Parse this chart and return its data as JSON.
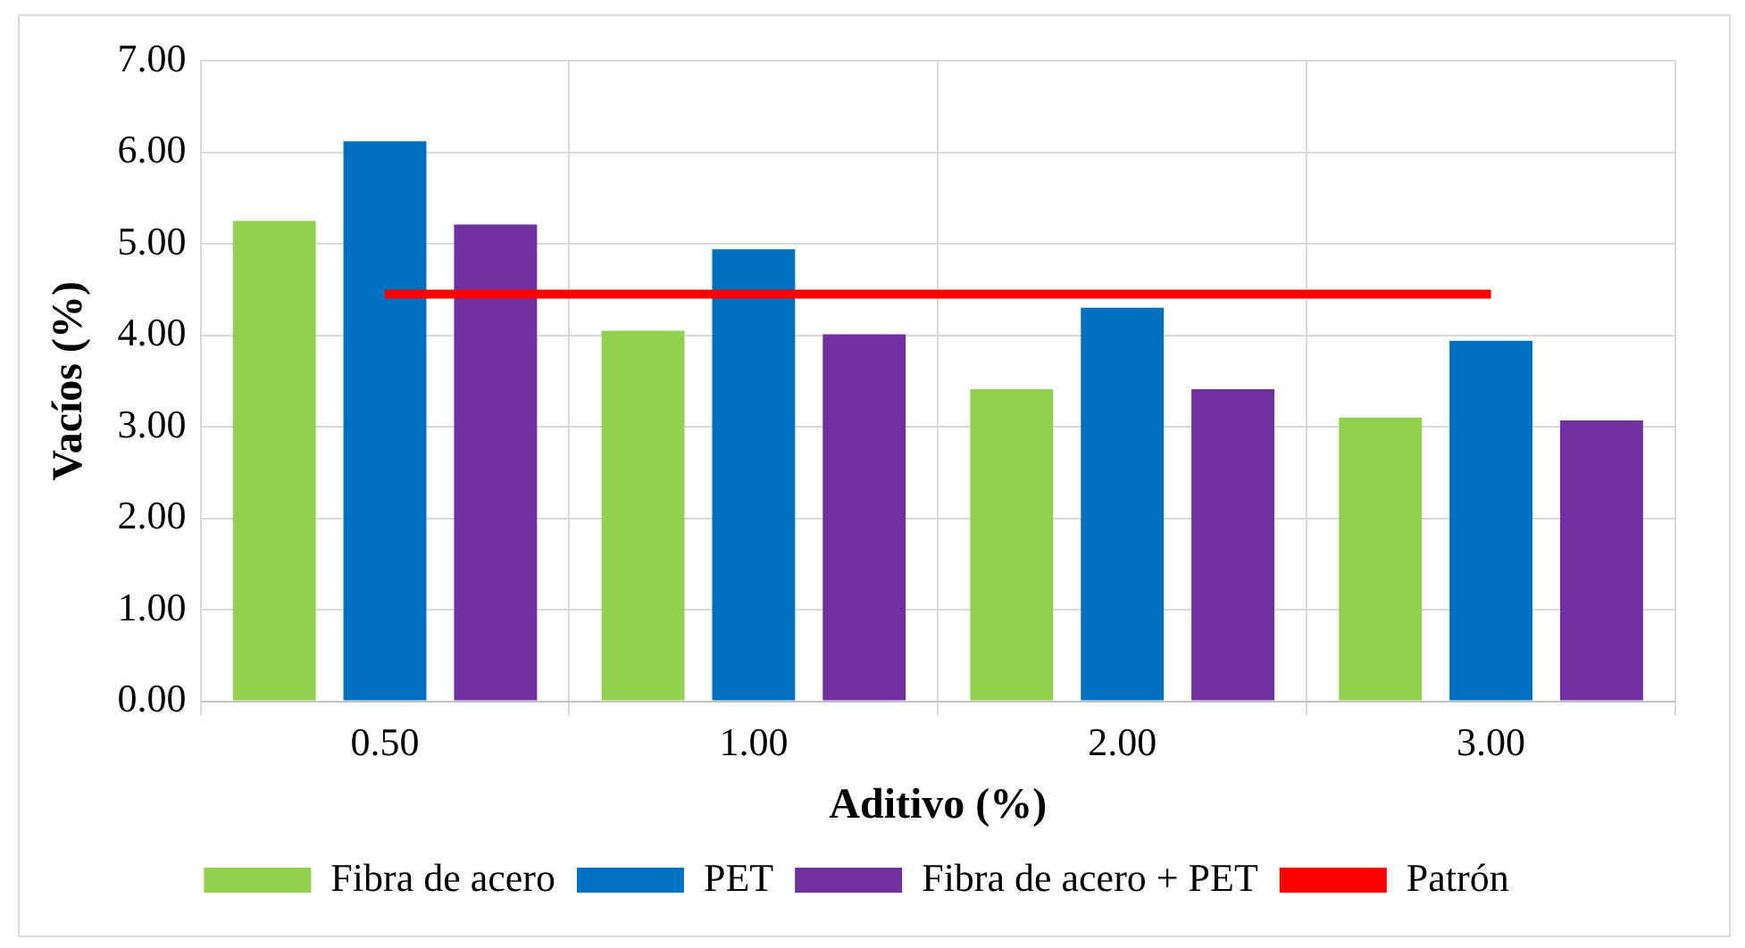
{
  "chart_data": {
    "type": "bar",
    "xlabel": "Aditivo (%)",
    "ylabel": "Vacíos (%)",
    "categories": [
      "0.50",
      "1.00",
      "2.00",
      "3.00"
    ],
    "series": [
      {
        "name": "Fibra de acero",
        "color": "#92d050",
        "values": [
          5.25,
          4.05,
          3.41,
          3.1
        ]
      },
      {
        "name": "PET",
        "color": "#0070c0",
        "values": [
          6.12,
          4.94,
          4.3,
          3.94
        ]
      },
      {
        "name": "Fibra de acero + PET",
        "color": "#7030a0",
        "values": [
          5.21,
          4.01,
          3.41,
          3.07
        ]
      },
      {
        "name": "Patrón",
        "type": "line",
        "color": "#ff0000",
        "values": [
          4.45,
          4.45,
          4.45,
          4.45
        ]
      }
    ],
    "ylim": [
      0,
      7
    ],
    "yticks": [
      {
        "value": 0,
        "label": "0.00"
      },
      {
        "value": 1,
        "label": "1.00"
      },
      {
        "value": 2,
        "label": "2.00"
      },
      {
        "value": 3,
        "label": "3.00"
      },
      {
        "value": 4,
        "label": "4.00"
      },
      {
        "value": 5,
        "label": "5.00"
      },
      {
        "value": 6,
        "label": "6.00"
      },
      {
        "value": 7,
        "label": "7.00"
      }
    ],
    "grid": true,
    "legend": "bottom",
    "marker": "none",
    "line_style": "solid"
  }
}
